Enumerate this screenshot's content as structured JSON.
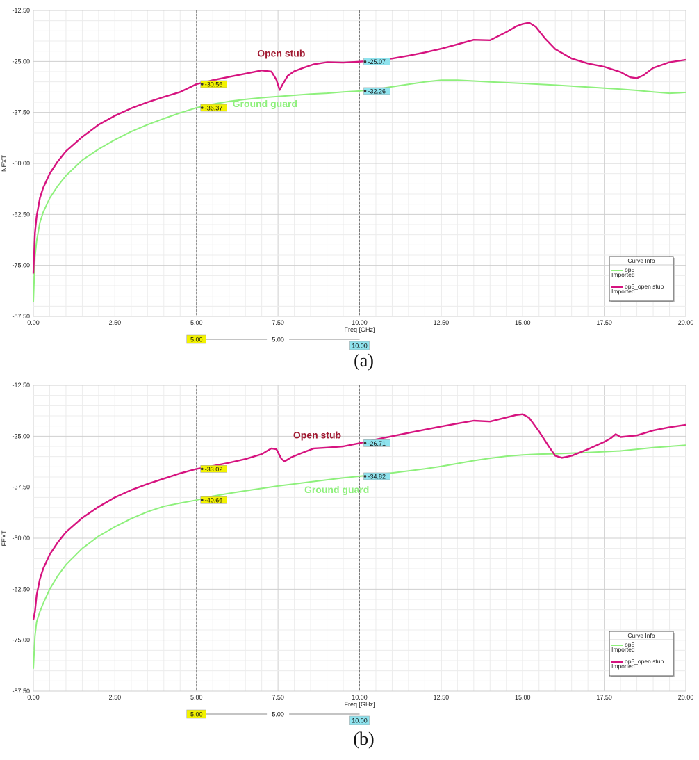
{
  "colors": {
    "open_stub": "#d6137f",
    "ground_guard": "#8ef07c",
    "marker_yellow": "#f2f200",
    "marker_cyan": "#8fe3ee"
  },
  "chart_data": [
    {
      "type": "line",
      "caption": "(a)",
      "xlabel": "Freq [GHz]",
      "ylabel": "NEXT",
      "xlim": [
        0,
        20
      ],
      "ylim": [
        -87.5,
        -12.5
      ],
      "xticks": [
        "0.00",
        "2.50",
        "5.00",
        "7.50",
        "10.00",
        "12.50",
        "15.00",
        "17.50",
        "20.00"
      ],
      "yticks": [
        "-12.50",
        "-25.00",
        "-37.50",
        "-50.00",
        "-62.50",
        "-75.00",
        "-87.50"
      ],
      "grid": true,
      "annotations": [
        {
          "text": "Open stub",
          "x": 7.6,
          "y": -23.8,
          "color": "#a01830"
        },
        {
          "text": "Ground guard",
          "x": 7.1,
          "y": -36.2,
          "color": "#8ef07c"
        }
      ],
      "markers": {
        "lines": [
          5.0,
          10.0
        ],
        "points": [
          {
            "x": 5.0,
            "y": -30.56,
            "label": "-30.56",
            "color": "#f2f200"
          },
          {
            "x": 5.0,
            "y": -36.37,
            "label": "-36.37",
            "color": "#f2f200"
          },
          {
            "x": 10.0,
            "y": -25.07,
            "label": "-25.07",
            "color": "#8fe3ee"
          },
          {
            "x": 10.0,
            "y": -32.26,
            "label": "-32.26",
            "color": "#8fe3ee"
          }
        ],
        "slider": {
          "left": "5.00",
          "mid": "5.00",
          "right": "10.00"
        }
      },
      "legend": {
        "title": "Curve Info",
        "position": "bottom-right",
        "entries": [
          {
            "name": "op5",
            "sub": "Imported",
            "color": "#8ef07c"
          },
          {
            "name": "op5_open stub",
            "sub": "Imported",
            "color": "#d6137f"
          }
        ]
      },
      "series": [
        {
          "name": "op5_open stub",
          "color": "#d6137f",
          "x": [
            0,
            0.05,
            0.1,
            0.2,
            0.3,
            0.5,
            0.75,
            1.0,
            1.5,
            2.0,
            2.5,
            3.0,
            3.5,
            4.0,
            4.5,
            5.0,
            5.5,
            6.0,
            6.5,
            7.0,
            7.3,
            7.45,
            7.55,
            7.65,
            7.8,
            8.0,
            8.3,
            8.6,
            9.0,
            9.5,
            10.0,
            10.5,
            11.0,
            11.5,
            12.0,
            12.5,
            13.0,
            13.5,
            14.0,
            14.5,
            14.8,
            15.0,
            15.2,
            15.4,
            15.7,
            16.0,
            16.5,
            17.0,
            17.5,
            18.0,
            18.3,
            18.5,
            18.7,
            19.0,
            19.5,
            20.0
          ],
          "y": [
            -77,
            -67,
            -63,
            -58.5,
            -56,
            -52.5,
            -49.5,
            -47,
            -43.5,
            -40.5,
            -38.3,
            -36.5,
            -35,
            -33.7,
            -32.5,
            -30.56,
            -29.6,
            -28.8,
            -28,
            -27.2,
            -27.5,
            -29.5,
            -32,
            -30.5,
            -28.5,
            -27.4,
            -26.5,
            -25.7,
            -25.2,
            -25.3,
            -25.07,
            -24.8,
            -24.3,
            -23.6,
            -22.8,
            -21.9,
            -20.8,
            -19.7,
            -19.8,
            -17.8,
            -16.4,
            -15.8,
            -15.5,
            -16.5,
            -19.5,
            -22,
            -24.3,
            -25.5,
            -26.3,
            -27.6,
            -28.9,
            -29.1,
            -28.4,
            -26.6,
            -25.2,
            -24.6
          ]
        },
        {
          "name": "op5",
          "color": "#8ef07c",
          "x": [
            0,
            0.05,
            0.1,
            0.2,
            0.3,
            0.5,
            0.75,
            1.0,
            1.5,
            2.0,
            2.5,
            3.0,
            3.5,
            4.0,
            4.5,
            5.0,
            5.5,
            6.0,
            6.5,
            7.0,
            7.5,
            8.0,
            8.5,
            9.0,
            9.5,
            10.0,
            10.5,
            11.0,
            11.5,
            12.0,
            12.5,
            13.0,
            14.0,
            15.0,
            16.0,
            17.0,
            18.0,
            18.5,
            19.0,
            19.5,
            19.8,
            20.0
          ],
          "y": [
            -84,
            -73,
            -69,
            -64.5,
            -62,
            -58.5,
            -55.5,
            -53,
            -49.2,
            -46.5,
            -44.2,
            -42.2,
            -40.5,
            -39,
            -37.6,
            -36.37,
            -35.5,
            -34.8,
            -34.3,
            -33.9,
            -33.6,
            -33.3,
            -33,
            -32.8,
            -32.5,
            -32.26,
            -31.8,
            -31.2,
            -30.6,
            -30,
            -29.6,
            -29.6,
            -30,
            -30.4,
            -30.8,
            -31.3,
            -31.8,
            -32.1,
            -32.5,
            -32.8,
            -32.7,
            -32.6
          ]
        }
      ]
    },
    {
      "type": "line",
      "caption": "(b)",
      "xlabel": "Freq [GHz]",
      "ylabel": "FEXT",
      "xlim": [
        0,
        20
      ],
      "ylim": [
        -87.5,
        -12.5
      ],
      "xticks": [
        "0.00",
        "2.50",
        "5.00",
        "7.50",
        "10.00",
        "12.50",
        "15.00",
        "17.50",
        "20.00"
      ],
      "yticks": [
        "-12.50",
        "-25.00",
        "-37.50",
        "-50.00",
        "-62.50",
        "-75.00",
        "-87.50"
      ],
      "grid": true,
      "annotations": [
        {
          "text": "Open stub",
          "x": 8.7,
          "y": -25.5,
          "color": "#a01830"
        },
        {
          "text": "Ground guard",
          "x": 9.3,
          "y": -38.9,
          "color": "#8ef07c"
        }
      ],
      "markers": {
        "lines": [
          5.0,
          10.0
        ],
        "points": [
          {
            "x": 5.0,
            "y": -33.02,
            "label": "-33.02",
            "color": "#f2f200"
          },
          {
            "x": 5.0,
            "y": -40.66,
            "label": "-40.66",
            "color": "#f2f200"
          },
          {
            "x": 10.0,
            "y": -26.71,
            "label": "-26.71",
            "color": "#8fe3ee"
          },
          {
            "x": 10.0,
            "y": -34.82,
            "label": "-34.82",
            "color": "#8fe3ee"
          }
        ],
        "slider": {
          "left": "5.00",
          "mid": "5.00",
          "right": "10.00"
        }
      },
      "legend": {
        "title": "Curve Info",
        "position": "bottom-right",
        "entries": [
          {
            "name": "op5",
            "sub": "Imported",
            "color": "#8ef07c"
          },
          {
            "name": "op5_open stub",
            "sub": "Imported",
            "color": "#d6137f"
          }
        ]
      },
      "series": [
        {
          "name": "op5_open stub",
          "color": "#d6137f",
          "x": [
            0,
            0.05,
            0.1,
            0.2,
            0.3,
            0.5,
            0.75,
            1.0,
            1.5,
            2.0,
            2.5,
            3.0,
            3.5,
            4.0,
            4.5,
            5.0,
            5.5,
            6.0,
            6.5,
            7.0,
            7.3,
            7.45,
            7.6,
            7.7,
            7.9,
            8.2,
            8.6,
            9.0,
            9.5,
            10.0,
            10.5,
            11.0,
            11.5,
            12.0,
            12.5,
            13.0,
            13.5,
            14.0,
            14.5,
            14.8,
            15.0,
            15.2,
            15.5,
            15.8,
            16.0,
            16.2,
            16.5,
            17.0,
            17.5,
            17.7,
            17.85,
            18.0,
            18.5,
            19.0,
            19.5,
            20.0
          ],
          "y": [
            -70,
            -68,
            -64,
            -60,
            -57.5,
            -54,
            -51,
            -48.5,
            -45,
            -42.3,
            -40,
            -38.2,
            -36.7,
            -35.4,
            -34.1,
            -33.02,
            -32.3,
            -31.5,
            -30.6,
            -29.4,
            -28,
            -28.2,
            -30.5,
            -31.2,
            -30.2,
            -29.2,
            -28,
            -27.8,
            -27.5,
            -26.71,
            -25.8,
            -25,
            -24.2,
            -23.4,
            -22.6,
            -21.9,
            -21.2,
            -21.4,
            -20.4,
            -19.8,
            -19.6,
            -20.5,
            -23.8,
            -27.5,
            -29.8,
            -30.3,
            -29.8,
            -28.2,
            -26.4,
            -25.5,
            -24.5,
            -25.2,
            -24.8,
            -23.6,
            -22.8,
            -22.2
          ]
        },
        {
          "name": "op5",
          "color": "#8ef07c",
          "x": [
            0,
            0.05,
            0.1,
            0.2,
            0.3,
            0.5,
            0.75,
            1.0,
            1.5,
            2.0,
            2.5,
            3.0,
            3.5,
            4.0,
            4.5,
            5.0,
            5.5,
            6.0,
            6.5,
            7.0,
            7.5,
            8.0,
            8.5,
            9.0,
            9.5,
            10.0,
            10.5,
            11.0,
            11.5,
            12.0,
            12.5,
            13.0,
            13.5,
            14.0,
            14.5,
            15.0,
            15.5,
            16.0,
            17.0,
            18.0,
            19.0,
            20.0
          ],
          "y": [
            -82,
            -74,
            -70.5,
            -68,
            -66,
            -62.5,
            -59.2,
            -56.5,
            -52.5,
            -49.5,
            -47.2,
            -45.2,
            -43.5,
            -42.2,
            -41.4,
            -40.66,
            -39.7,
            -39,
            -38.4,
            -37.8,
            -37.2,
            -36.7,
            -36.2,
            -35.7,
            -35.2,
            -34.82,
            -34.4,
            -34,
            -33.5,
            -33,
            -32.4,
            -31.7,
            -31,
            -30.4,
            -29.9,
            -29.6,
            -29.4,
            -29.3,
            -29,
            -28.6,
            -27.8,
            -27.2
          ]
        }
      ]
    }
  ]
}
